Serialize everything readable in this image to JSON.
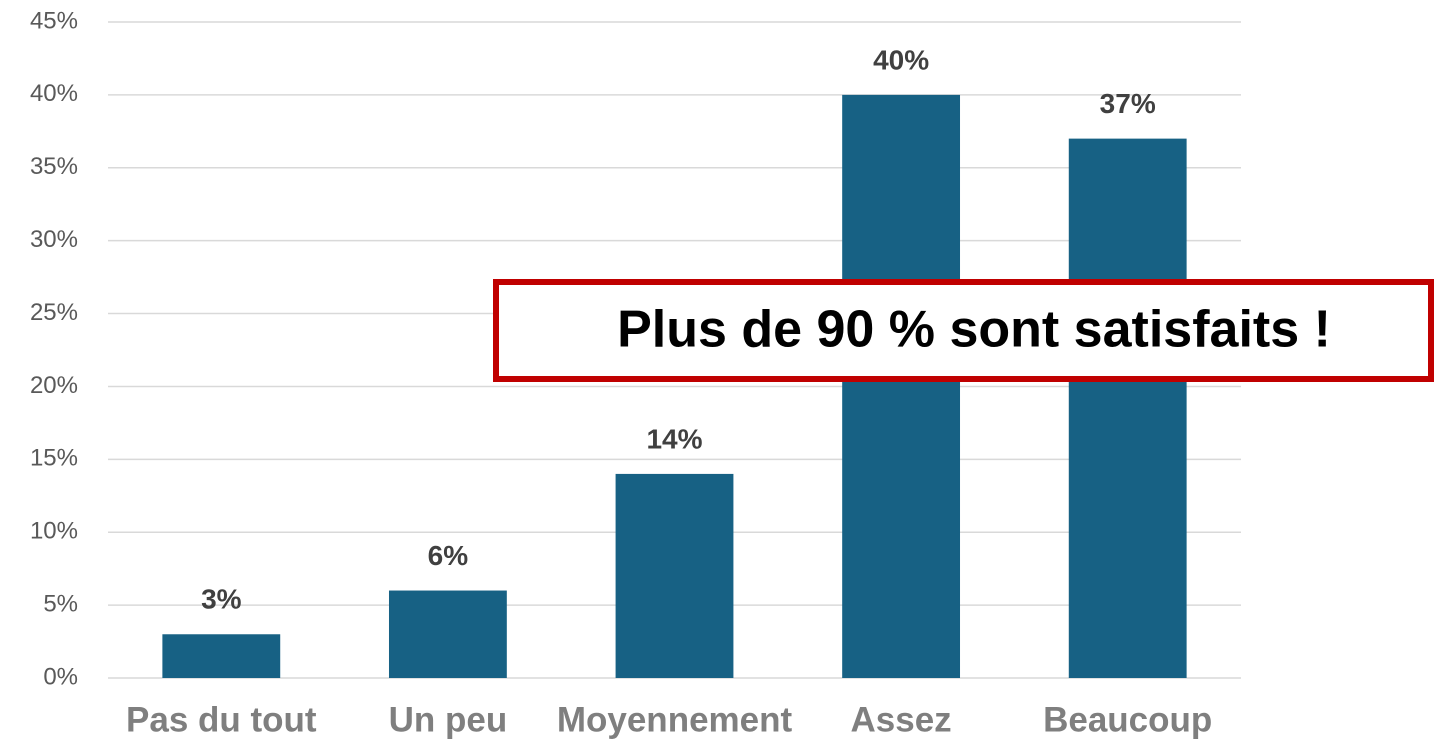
{
  "chart_data": {
    "type": "bar",
    "categories": [
      "Pas du tout",
      "Un peu",
      "Moyennement",
      "Assez",
      "Beaucoup"
    ],
    "values": [
      3,
      6,
      14,
      40,
      37
    ],
    "value_labels": [
      "3%",
      "6%",
      "14%",
      "40%",
      "37%"
    ],
    "color": "#176184",
    "ylim": [
      0,
      45
    ],
    "yticks": [
      {
        "value": 0,
        "label": "0%"
      },
      {
        "value": 5,
        "label": "5%"
      },
      {
        "value": 10,
        "label": "10%"
      },
      {
        "value": 15,
        "label": "15%"
      },
      {
        "value": 20,
        "label": "20%"
      },
      {
        "value": 25,
        "label": "25%"
      },
      {
        "value": 30,
        "label": "30%"
      },
      {
        "value": 35,
        "label": "35%"
      },
      {
        "value": 40,
        "label": "40%"
      },
      {
        "value": 45,
        "label": "45%"
      }
    ],
    "grid": true,
    "annotation": "Plus de 90 % sont satisfaits !"
  }
}
